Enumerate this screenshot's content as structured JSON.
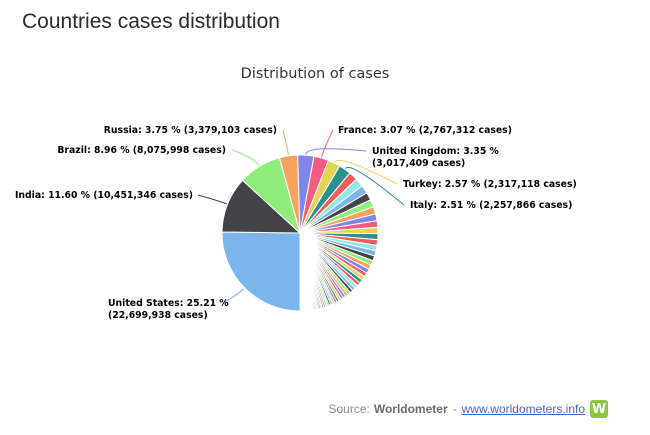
{
  "page": {
    "heading": "Countries cases distribution",
    "source_prefix": "Source:",
    "source_name": "Worldometer",
    "source_sep": "-",
    "source_link": "www.worldometers.info",
    "logo_letter": "W"
  },
  "chart_data": {
    "type": "pie",
    "title": "Distribution of cases",
    "start": "top",
    "direction": "clockwise",
    "slices": [
      {
        "name": "United States",
        "label": "United States: 25.21 %",
        "label2": "(22,699,938 cases)",
        "percent": 25.21,
        "cases": 22699938,
        "color": "#7cb5ec",
        "labeled": true
      },
      {
        "name": "India",
        "label": "India: 11.60 % (10,451,346 cases)",
        "percent": 11.6,
        "cases": 10451346,
        "color": "#434348",
        "labeled": true
      },
      {
        "name": "Brazil",
        "label": "Brazil: 8.96 % (8,075,998 cases)",
        "percent": 8.96,
        "cases": 8075998,
        "color": "#90ed7d",
        "labeled": true
      },
      {
        "name": "Russia",
        "label": "Russia: 3.75 % (3,379,103 cases)",
        "percent": 3.75,
        "cases": 3379103,
        "color": "#f7a35c",
        "labeled": true
      },
      {
        "name": "United Kingdom",
        "label": "United Kingdom: 3.35 %",
        "label2": "(3,017,409 cases)",
        "percent": 3.35,
        "cases": 3017409,
        "color": "#8085e9",
        "labeled": true
      },
      {
        "name": "France",
        "label": "France: 3.07 % (2,767,312 cases)",
        "percent": 3.07,
        "cases": 2767312,
        "color": "#f15c80",
        "labeled": true
      },
      {
        "name": "Turkey",
        "label": "Turkey: 2.57 % (2,317,118 cases)",
        "percent": 2.57,
        "cases": 2317118,
        "color": "#e4d354",
        "labeled": true
      },
      {
        "name": "Italy",
        "label": "Italy: 2.51 % (2,257,866 cases)",
        "percent": 2.51,
        "cases": 2257866,
        "color": "#2b908f",
        "labeled": true
      }
    ],
    "other_slices_percent": 38.98,
    "other_slice_colors": [
      "#f45b5b",
      "#91e8e1",
      "#7cb5ec",
      "#434348",
      "#90ed7d",
      "#f7a35c",
      "#8085e9",
      "#f15c80",
      "#e4d354",
      "#2b908f"
    ]
  }
}
